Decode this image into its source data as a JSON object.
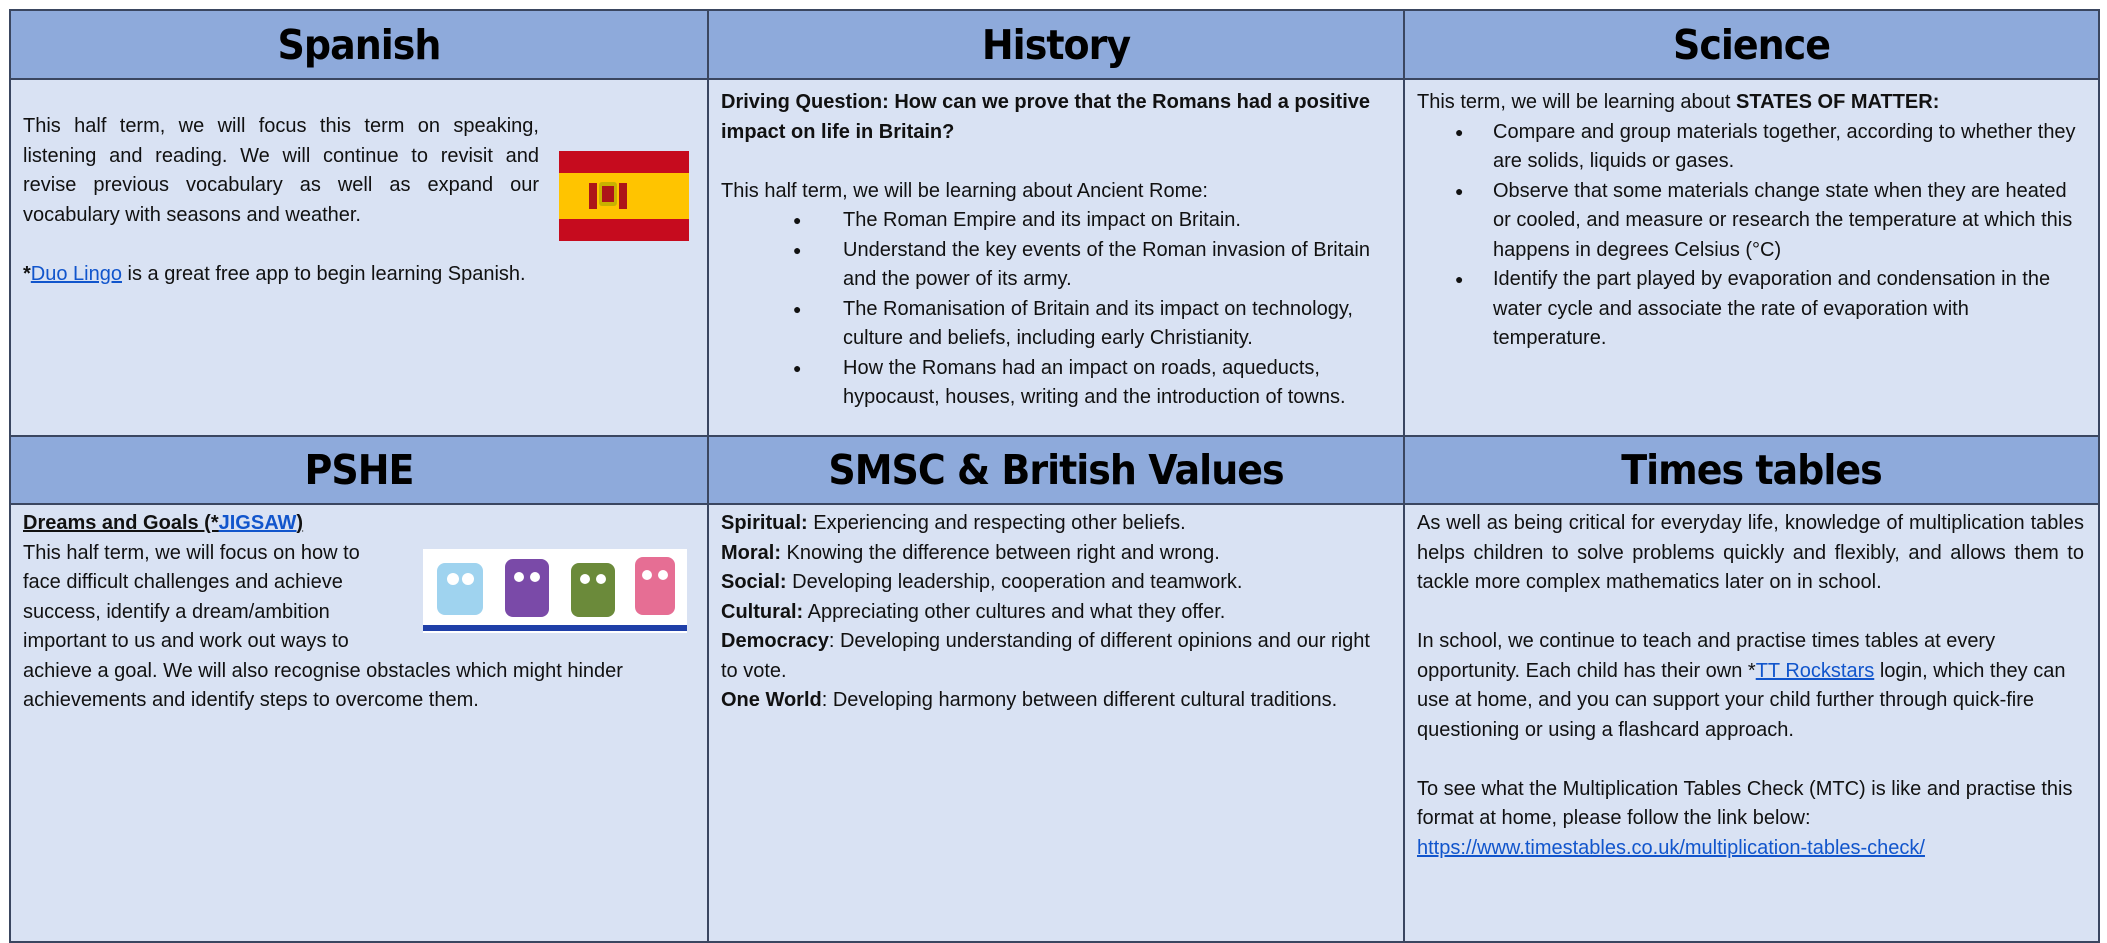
{
  "spanish": {
    "title": "Spanish",
    "intro": "This half term, we will focus this term on speaking, listening and reading. We will continue to revisit and revise previous vocabulary as well as expand our vocabulary with seasons and weather.",
    "app_star": "*",
    "app_link": "Duo Lingo",
    "app_text": "is a great free app to begin learning Spanish."
  },
  "history": {
    "title": "History",
    "question": "Driving Question: How can we prove that the Romans had a positive impact on life in Britain?",
    "intro": "This half term, we will be learning about Ancient Rome:",
    "bullets": [
      "The Roman Empire and its impact on Britain.",
      "Understand the key events of the Roman invasion of Britain and the power of its army.",
      "The Romanisation of Britain and its impact on technology, culture and beliefs, including early Christianity.",
      "How the Romans had an impact on roads, aqueducts, hypocaust, houses, writing and the introduction of towns."
    ]
  },
  "science": {
    "title": "Science",
    "intro": "This term, we will be learning about",
    "topic": "STATES OF MATTER:",
    "bullets": [
      "Compare and group materials together, according to whether they are solids, liquids or gases.",
      "Observe that some materials change state when they are heated or cooled, and measure or research the temperature at which this happens in degrees Celsius (°C)",
      "Identify the part played by evaporation and condensation in the water cycle and associate the rate of evaporation with temperature."
    ]
  },
  "pshe": {
    "title": "PSHE",
    "heading": "Dreams and Goals  (*",
    "heading_link": "JIGSAW",
    "heading_end": ")",
    "body": "This half term, we will focus on how to face difficult challenges and achieve success, identify a dream/ambition important to us and work out ways to achieve a goal. We will also recognise obstacles which might hinder achievements and identify steps to overcome them."
  },
  "smsc": {
    "title": "SMSC & British Values",
    "items": [
      {
        "label": "Spiritual:",
        "text": " Experiencing and respecting other beliefs."
      },
      {
        "label": "Moral:",
        "text": " Knowing the difference between right and wrong."
      },
      {
        "label": "Social:",
        "text": " Developing leadership, cooperation and teamwork."
      },
      {
        "label": "Cultural:",
        "text": " Appreciating other cultures and what they offer."
      },
      {
        "label": "Democracy",
        "text": ": Developing understanding of different opinions and our right to vote."
      },
      {
        "label": "One World",
        "text": ": Developing harmony between different cultural traditions."
      }
    ]
  },
  "times": {
    "title": "Times tables",
    "p1": "As well as being critical for everyday life, knowledge of multiplication tables helps children to solve problems quickly and flexibly, and allows them to tackle more complex mathematics later on in school.",
    "p2_before": "In school, we continue to teach and practise times tables at every opportunity. Each child has their own *",
    "p2_link": "TT Rockstars",
    "p2_after": " login, which they can use at home, and you can support your child further through quick-fire questioning or using a flashcard approach.",
    "p3": "To see what the Multiplication Tables Check (MTC) is like and practise this format at home, please follow the link below:",
    "p3_link": "https://www.timestables.co.uk/multiplication-tables-check/"
  }
}
